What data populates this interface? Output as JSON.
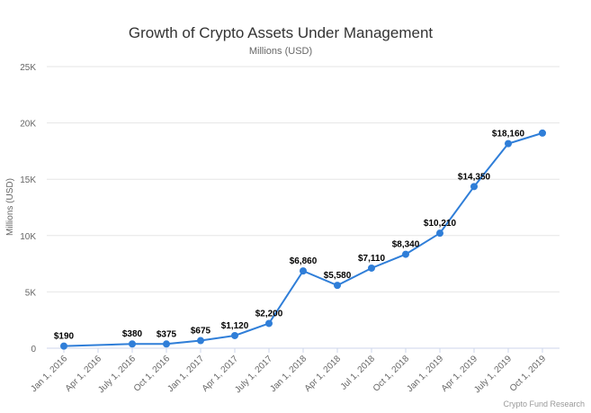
{
  "chart_data": {
    "type": "line",
    "title": "Growth of Crypto Assets Under Management",
    "subtitle": "Millions (USD)",
    "ylabel": "Millions (USD)",
    "xlabel": "",
    "ylim": [
      0,
      25000
    ],
    "y_ticks": [
      0,
      5000,
      10000,
      15000,
      20000,
      25000
    ],
    "y_tick_labels": [
      "0",
      "5K",
      "10K",
      "15K",
      "20K",
      "25K"
    ],
    "categories": [
      "Jan 1, 2016",
      "Apr 1, 2016",
      "July 1, 2016",
      "Oct 1, 2016",
      "Jan 1, 2017",
      "Apr 1, 2017",
      "July 1, 2017",
      "Jan 1, 2018",
      "Apr 1, 2018",
      "Jul 1, 2018",
      "Oct 1, 2018",
      "Jan 1, 2019",
      "Apr 1, 2019",
      "July 1, 2019",
      "Oct 1, 2019"
    ],
    "points": [
      {
        "x": "Jan 1, 2016",
        "y": 190,
        "label": "$190"
      },
      {
        "x": "July 1, 2016",
        "y": 380,
        "label": "$380"
      },
      {
        "x": "Oct 1, 2016",
        "y": 375,
        "label": "$375"
      },
      {
        "x": "Jan 1, 2017",
        "y": 675,
        "label": "$675"
      },
      {
        "x": "Apr 1, 2017",
        "y": 1120,
        "label": "$1,120"
      },
      {
        "x": "July 1, 2017",
        "y": 2200,
        "label": "$2,200"
      },
      {
        "x": "Jan 1, 2018",
        "y": 6860,
        "label": "$6,860"
      },
      {
        "x": "Apr 1, 2018",
        "y": 5580,
        "label": "$5,580"
      },
      {
        "x": "Jul 1, 2018",
        "y": 7110,
        "label": "$7,110"
      },
      {
        "x": "Oct 1, 2018",
        "y": 8340,
        "label": "$8,340"
      },
      {
        "x": "Jan 1, 2019",
        "y": 10210,
        "label": "$10,210"
      },
      {
        "x": "Apr 1, 2019",
        "y": 14350,
        "label": "$14,350"
      },
      {
        "x": "July 1, 2019",
        "y": 18160,
        "label": "$18,160"
      },
      {
        "x": "Oct 1, 2019",
        "y": 19100,
        "label": ""
      }
    ],
    "grid": true,
    "legend": "none",
    "line_color": "#2f7ed8",
    "credit": "Crypto Fund Research"
  }
}
